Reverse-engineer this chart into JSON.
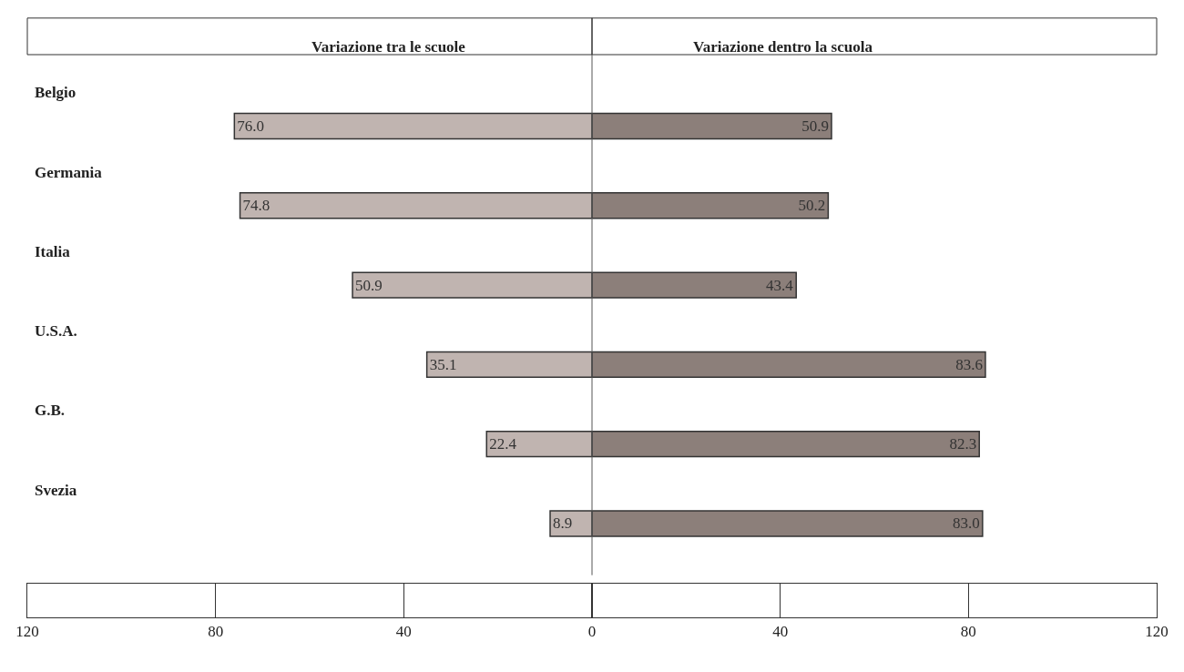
{
  "chart_data": [
    {
      "type": "bar",
      "orientation": "horizontal",
      "title": "Variazione tra le scuole",
      "categories": [
        "Belgio",
        "Germania",
        "Italia",
        "U.S.A.",
        "G.B.",
        "Svezia"
      ],
      "series": [
        {
          "color": "#c0b4b0",
          "values": [
            76.0,
            74.8,
            50.9,
            35.1,
            22.4,
            8.9
          ],
          "value_labels": [
            "76.0",
            "74.8",
            "50.9",
            "35.1",
            "22.4",
            "8.9"
          ]
        }
      ],
      "xlim": [
        120,
        0
      ],
      "xticks": [
        120,
        80,
        40
      ]
    },
    {
      "type": "bar",
      "orientation": "horizontal",
      "title": "Variazione dentro la scuola",
      "series": [
        {
          "color": "#8c7f7a",
          "values": [
            50.9,
            50.2,
            43.4,
            83.6,
            82.3,
            83.0
          ],
          "value_labels": [
            "50.9",
            "50.2",
            "43.4",
            "83.6",
            "82.3",
            "83.0"
          ]
        }
      ],
      "xlim": [
        0,
        120
      ],
      "xticks": [
        0,
        40,
        80,
        120
      ],
      "tick_labels": "x"
    }
  ]
}
